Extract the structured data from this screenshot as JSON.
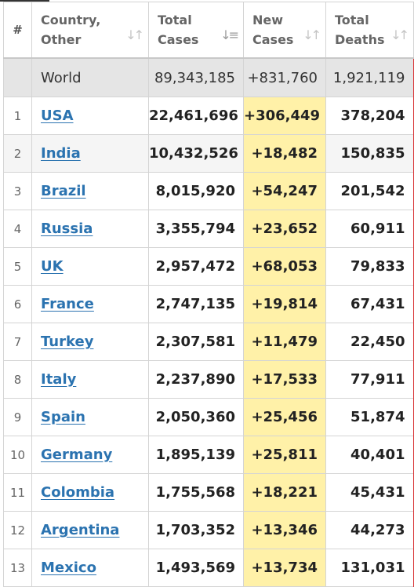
{
  "header": {
    "index": "#",
    "country_line1": "Country,",
    "country_line2": "Other",
    "total_cases_line1": "Total",
    "total_cases_line2": "Cases",
    "new_cases_line1": "New",
    "new_cases_line2": "Cases",
    "total_deaths_line1": "Total",
    "total_deaths_line2": "Deaths"
  },
  "world": {
    "name": "World",
    "total_cases": "89,343,185",
    "new_cases": "+831,760",
    "total_deaths": "1,921,119"
  },
  "rows": [
    {
      "idx": "1",
      "country": "USA",
      "total_cases": "22,461,696",
      "new_cases": "+306,449",
      "total_deaths": "378,204"
    },
    {
      "idx": "2",
      "country": "India",
      "total_cases": "10,432,526",
      "new_cases": "+18,482",
      "total_deaths": "150,835"
    },
    {
      "idx": "3",
      "country": "Brazil",
      "total_cases": "8,015,920",
      "new_cases": "+54,247",
      "total_deaths": "201,542"
    },
    {
      "idx": "4",
      "country": "Russia",
      "total_cases": "3,355,794",
      "new_cases": "+23,652",
      "total_deaths": "60,911"
    },
    {
      "idx": "5",
      "country": "UK",
      "total_cases": "2,957,472",
      "new_cases": "+68,053",
      "total_deaths": "79,833"
    },
    {
      "idx": "6",
      "country": "France",
      "total_cases": "2,747,135",
      "new_cases": "+19,814",
      "total_deaths": "67,431"
    },
    {
      "idx": "7",
      "country": "Turkey",
      "total_cases": "2,307,581",
      "new_cases": "+11,479",
      "total_deaths": "22,450"
    },
    {
      "idx": "8",
      "country": "Italy",
      "total_cases": "2,237,890",
      "new_cases": "+17,533",
      "total_deaths": "77,911"
    },
    {
      "idx": "9",
      "country": "Spain",
      "total_cases": "2,050,360",
      "new_cases": "+25,456",
      "total_deaths": "51,874"
    },
    {
      "idx": "10",
      "country": "Germany",
      "total_cases": "1,895,139",
      "new_cases": "+25,811",
      "total_deaths": "40,401"
    },
    {
      "idx": "11",
      "country": "Colombia",
      "total_cases": "1,755,568",
      "new_cases": "+18,221",
      "total_deaths": "45,431"
    },
    {
      "idx": "12",
      "country": "Argentina",
      "total_cases": "1,703,352",
      "new_cases": "+13,346",
      "total_deaths": "44,273"
    },
    {
      "idx": "13",
      "country": "Mexico",
      "total_cases": "1,493,569",
      "new_cases": "+13,734",
      "total_deaths": "131,031"
    }
  ],
  "colors": {
    "link": "#2b73b0",
    "new_cases_highlight": "#fff1a8",
    "world_row_bg": "#e5e5e5",
    "deaths_border": "#d9383a"
  }
}
